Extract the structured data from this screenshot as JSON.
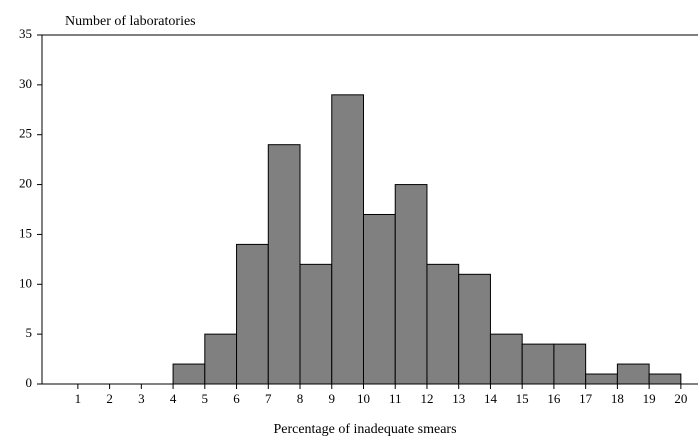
{
  "chart_data": {
    "type": "histogram",
    "title": "Number of laboratories",
    "x_label": "Percentage of inadequate smears",
    "bins": [
      1,
      2,
      3,
      4,
      5,
      6,
      7,
      8,
      9,
      10,
      11,
      12,
      13,
      14,
      15,
      16,
      17,
      18,
      19,
      20
    ],
    "values": [
      0,
      0,
      0,
      2,
      5,
      14,
      24,
      12,
      29,
      17,
      20,
      12,
      11,
      5,
      4,
      4,
      1,
      2,
      1
    ],
    "color": "#808080",
    "xlim": [
      -0.13,
      20.54
    ],
    "ylim": [
      0,
      35
    ],
    "yticks": [
      0,
      5,
      10,
      15,
      20,
      25,
      30,
      35
    ]
  }
}
